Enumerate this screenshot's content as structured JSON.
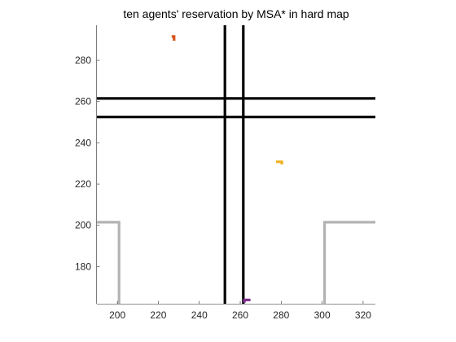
{
  "chart_data": {
    "type": "line",
    "title": "ten agents' reservation by MSA* in hard map",
    "xlabel": "",
    "ylabel": "",
    "xlim": [
      190,
      326
    ],
    "ylim": [
      162,
      297
    ],
    "xticks": [
      200,
      220,
      240,
      260,
      280,
      300,
      320
    ],
    "yticks": [
      180,
      200,
      220,
      240,
      260,
      280
    ],
    "grid": false,
    "legend": "none",
    "series": [
      {
        "role": "boundary",
        "color": "#000000",
        "points": [
          [
            252.5,
            162
          ],
          [
            252.5,
            297
          ]
        ]
      },
      {
        "role": "boundary",
        "color": "#000000",
        "points": [
          [
            261.5,
            162
          ],
          [
            261.5,
            297
          ]
        ]
      },
      {
        "role": "boundary",
        "color": "#000000",
        "points": [
          [
            190,
            261.5
          ],
          [
            326,
            261.5
          ]
        ]
      },
      {
        "role": "boundary",
        "color": "#000000",
        "points": [
          [
            190,
            252.5
          ],
          [
            326,
            252.5
          ]
        ]
      },
      {
        "role": "obstacle",
        "color": "#b3b3b3",
        "points": [
          [
            190,
            201.5
          ],
          [
            200.8,
            201.5
          ],
          [
            200.8,
            162
          ]
        ]
      },
      {
        "role": "obstacle",
        "color": "#b3b3b3",
        "points": [
          [
            326,
            201.5
          ],
          [
            301.2,
            201.5
          ],
          [
            301.2,
            162
          ]
        ]
      },
      {
        "role": "reservation",
        "color": "#d95319",
        "points": [
          [
            226.5,
            291.5
          ],
          [
            227.7,
            291.5
          ],
          [
            227.7,
            289.5
          ]
        ]
      },
      {
        "role": "reservation",
        "color": "#edb120",
        "points": [
          [
            277.5,
            230.8
          ],
          [
            280.3,
            230.8
          ],
          [
            280.3,
            229.5
          ]
        ]
      },
      {
        "role": "reservation",
        "color": "#7e2f8e",
        "points": [
          [
            262,
            162.5
          ],
          [
            262,
            163.8
          ],
          [
            265,
            163.8
          ]
        ]
      }
    ]
  }
}
